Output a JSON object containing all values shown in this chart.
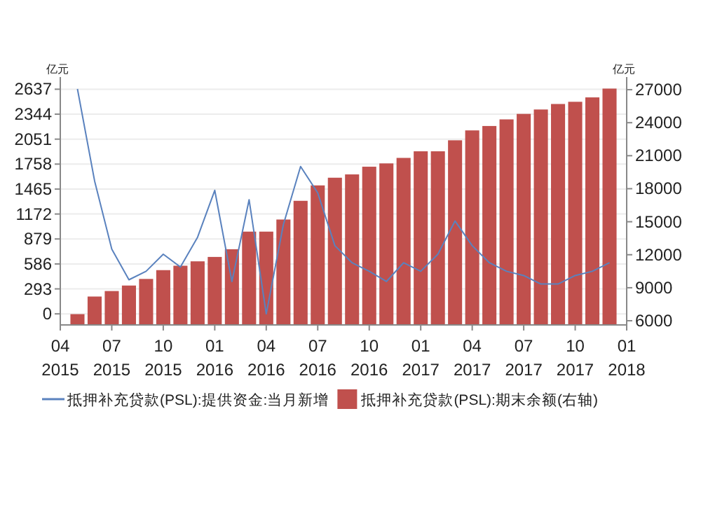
{
  "chart_data": {
    "type": "bar",
    "ylabel": "亿元",
    "y2label": "亿元",
    "x": [
      "2015-05",
      "2015-06",
      "2015-07",
      "2015-08",
      "2015-09",
      "2015-10",
      "2015-11",
      "2015-12",
      "2016-01",
      "2016-02",
      "2016-03",
      "2016-04",
      "2016-05",
      "2016-06",
      "2016-07",
      "2016-08",
      "2016-09",
      "2016-10",
      "2016-11",
      "2016-12",
      "2017-01",
      "2017-02",
      "2017-03",
      "2017-04",
      "2017-05",
      "2017-06",
      "2017-07",
      "2017-08",
      "2017-09",
      "2017-10",
      "2017-11",
      "2017-12"
    ],
    "series": [
      {
        "name": "抵押补充贷款(PSL):提供资金:当月新增",
        "type": "line",
        "color": "#5a82be",
        "values": [
          2640,
          1560,
          760,
          400,
          500,
          700,
          550,
          900,
          1450,
          380,
          1340,
          0,
          1050,
          1730,
          1420,
          800,
          600,
          500,
          380,
          600,
          500,
          700,
          1090,
          800,
          600,
          500,
          450,
          350,
          350,
          450,
          500,
          600
        ]
      },
      {
        "name": "抵押补充贷款(PSL):期末余额(右轴)",
        "axis": "y2",
        "color": "#c0504d",
        "values": [
          6600,
          8200,
          8700,
          9200,
          9800,
          10600,
          11000,
          11400,
          11800,
          12500,
          14100,
          14100,
          15200,
          16900,
          18300,
          19000,
          19300,
          20000,
          20300,
          20800,
          21400,
          21400,
          22400,
          23300,
          23700,
          24300,
          24800,
          25200,
          25700,
          25900,
          26300,
          27100
        ]
      }
    ],
    "xlim": [
      "2015-04",
      "2018-01"
    ],
    "xticks": [
      {
        "value": "2015-04",
        "label": "04\n2015"
      },
      {
        "value": "2015-07",
        "label": "07\n2015"
      },
      {
        "value": "2015-10",
        "label": "10\n2015"
      },
      {
        "value": "2016-01",
        "label": "01\n2016"
      },
      {
        "value": "2016-04",
        "label": "04\n2016"
      },
      {
        "value": "2016-07",
        "label": "07\n2016"
      },
      {
        "value": "2016-10",
        "label": "10\n2016"
      },
      {
        "value": "2017-01",
        "label": "01\n2017"
      },
      {
        "value": "2017-04",
        "label": "04\n2017"
      },
      {
        "value": "2017-07",
        "label": "07\n2017"
      },
      {
        "value": "2017-10",
        "label": "10\n2017"
      },
      {
        "value": "2018-01",
        "label": "01\n2018"
      }
    ],
    "ylim": [
      -130,
      2780
    ],
    "yticks": [
      0,
      293,
      586,
      879,
      1172,
      1465,
      1758,
      2051,
      2344,
      2637
    ],
    "y2lim": [
      5620,
      28150
    ],
    "y2ticks": [
      6000,
      9000,
      12000,
      15000,
      18000,
      21000,
      24000,
      27000
    ],
    "grid": "y",
    "legend": "bottom"
  }
}
